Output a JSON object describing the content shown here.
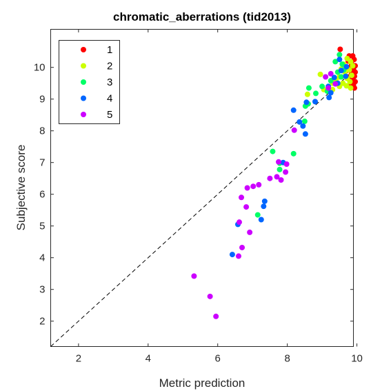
{
  "chart_data": {
    "type": "scatter",
    "title": "chromatic_aberrations (tid2013)",
    "xlabel": "Metric prediction",
    "ylabel": "Subjective score",
    "xlim": [
      1.2,
      9.9
    ],
    "ylim": [
      1.2,
      11.2
    ],
    "xticks": [
      2,
      4,
      6,
      8,
      10
    ],
    "yticks": [
      2,
      3,
      4,
      5,
      6,
      7,
      8,
      9,
      10
    ],
    "grid": false,
    "legend_position": "top-left",
    "reference_line": "y = x, dashed black",
    "series": [
      {
        "name": "1",
        "color": "#ff0000",
        "points": [
          [
            9.52,
            10.57
          ],
          [
            9.78,
            10.36
          ],
          [
            9.88,
            10.36
          ],
          [
            9.92,
            10.25
          ],
          [
            9.75,
            10.2
          ],
          [
            9.85,
            10.1
          ],
          [
            9.95,
            10.05
          ],
          [
            9.8,
            10.0
          ],
          [
            9.9,
            9.95
          ],
          [
            9.7,
            9.9
          ],
          [
            9.95,
            9.85
          ],
          [
            9.85,
            9.8
          ],
          [
            9.93,
            9.72
          ],
          [
            9.75,
            9.7
          ],
          [
            9.88,
            9.62
          ],
          [
            9.95,
            9.55
          ],
          [
            9.82,
            9.5
          ],
          [
            9.9,
            9.45
          ],
          [
            9.93,
            9.35
          ]
        ]
      },
      {
        "name": "2",
        "color": "#ccff00",
        "points": [
          [
            9.72,
            10.28
          ],
          [
            9.82,
            10.18
          ],
          [
            9.62,
            10.1
          ],
          [
            9.88,
            10.05
          ],
          [
            9.55,
            9.95
          ],
          [
            9.78,
            9.92
          ],
          [
            8.95,
            9.78
          ],
          [
            9.65,
            9.85
          ],
          [
            9.85,
            9.75
          ],
          [
            9.5,
            9.7
          ],
          [
            9.72,
            9.65
          ],
          [
            9.4,
            9.62
          ],
          [
            9.8,
            9.55
          ],
          [
            9.6,
            9.5
          ],
          [
            9.3,
            9.5
          ],
          [
            9.7,
            9.42
          ],
          [
            9.5,
            9.4
          ],
          [
            9.82,
            9.35
          ],
          [
            9.3,
            9.3
          ],
          [
            8.58,
            9.15
          ],
          [
            9.05,
            9.3
          ]
        ]
      },
      {
        "name": "3",
        "color": "#00ff66",
        "points": [
          [
            9.5,
            10.4
          ],
          [
            9.58,
            10.1
          ],
          [
            9.38,
            10.18
          ],
          [
            9.62,
            9.92
          ],
          [
            9.45,
            9.85
          ],
          [
            9.55,
            9.7
          ],
          [
            9.25,
            9.58
          ],
          [
            9.42,
            9.5
          ],
          [
            9.0,
            9.4
          ],
          [
            8.62,
            9.35
          ],
          [
            9.15,
            9.25
          ],
          [
            8.82,
            9.18
          ],
          [
            8.6,
            8.85
          ],
          [
            8.52,
            8.78
          ],
          [
            8.5,
            8.3
          ],
          [
            7.58,
            7.35
          ],
          [
            8.18,
            7.28
          ],
          [
            7.78,
            6.98
          ],
          [
            7.78,
            6.78
          ],
          [
            7.15,
            5.35
          ]
        ]
      },
      {
        "name": "4",
        "color": "#0066ff",
        "points": [
          [
            9.5,
            10.25
          ],
          [
            9.7,
            10.02
          ],
          [
            9.55,
            9.9
          ],
          [
            9.68,
            9.72
          ],
          [
            9.35,
            9.68
          ],
          [
            9.45,
            9.5
          ],
          [
            9.18,
            9.4
          ],
          [
            9.25,
            9.2
          ],
          [
            9.2,
            9.05
          ],
          [
            8.8,
            8.92
          ],
          [
            8.55,
            8.9
          ],
          [
            8.18,
            8.65
          ],
          [
            8.35,
            8.28
          ],
          [
            8.45,
            8.15
          ],
          [
            8.52,
            7.9
          ],
          [
            7.88,
            7.0
          ],
          [
            7.35,
            5.78
          ],
          [
            7.32,
            5.62
          ],
          [
            7.25,
            5.2
          ],
          [
            6.58,
            5.05
          ],
          [
            6.42,
            4.1
          ]
        ]
      },
      {
        "name": "5",
        "color": "#cc00ff",
        "points": [
          [
            9.25,
            9.8
          ],
          [
            9.1,
            9.7
          ],
          [
            9.38,
            9.48
          ],
          [
            9.18,
            9.35
          ],
          [
            8.2,
            8.02
          ],
          [
            7.75,
            7.02
          ],
          [
            7.98,
            6.95
          ],
          [
            7.95,
            6.7
          ],
          [
            7.7,
            6.55
          ],
          [
            7.82,
            6.45
          ],
          [
            7.5,
            6.5
          ],
          [
            7.18,
            6.3
          ],
          [
            7.02,
            6.25
          ],
          [
            6.85,
            6.2
          ],
          [
            6.68,
            5.9
          ],
          [
            6.82,
            5.6
          ],
          [
            6.62,
            5.12
          ],
          [
            6.92,
            4.8
          ],
          [
            6.7,
            4.32
          ],
          [
            6.6,
            4.05
          ],
          [
            5.32,
            3.42
          ],
          [
            5.78,
            2.78
          ],
          [
            5.95,
            2.15
          ]
        ]
      }
    ]
  }
}
